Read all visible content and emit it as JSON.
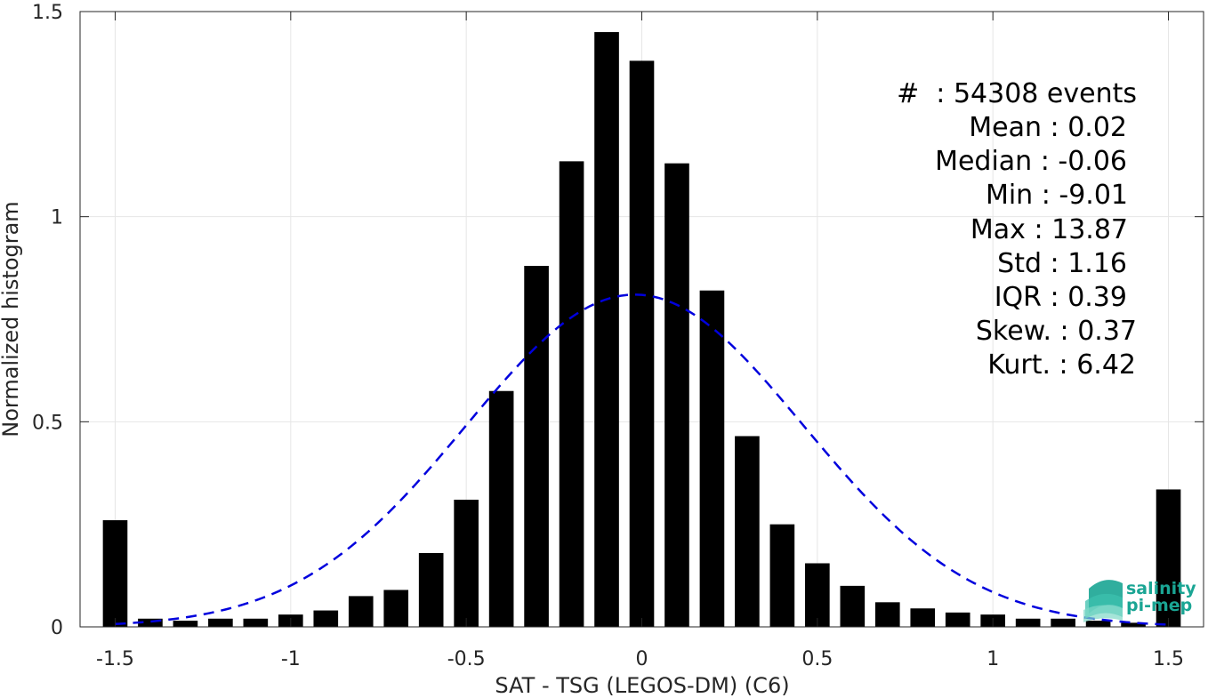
{
  "chart_data": {
    "type": "bar",
    "xlabel": "SAT - TSG (LEGOS-DM) (C6)",
    "ylabel": "Normalized histogram",
    "xlim": [
      -1.6,
      1.6
    ],
    "ylim": [
      0,
      1.5
    ],
    "xticks": [
      -1.5,
      -1,
      -0.5,
      0,
      0.5,
      1,
      1.5
    ],
    "xtick_labels": [
      "-1.5",
      "-1",
      "-0.5",
      "0",
      "0.5",
      "1",
      "1.5"
    ],
    "yticks": [
      0,
      0.5,
      1,
      1.5
    ],
    "ytick_labels": [
      "0",
      "0.5",
      "1",
      "1.5"
    ],
    "grid": true,
    "bar_width": 0.07,
    "bar_color": "#000000",
    "x": [
      -1.5,
      -1.4,
      -1.3,
      -1.2,
      -1.1,
      -1.0,
      -0.9,
      -0.8,
      -0.7,
      -0.6,
      -0.5,
      -0.4,
      -0.3,
      -0.2,
      -0.1,
      0.0,
      0.1,
      0.2,
      0.3,
      0.4,
      0.5,
      0.6,
      0.7,
      0.8,
      0.9,
      1.0,
      1.1,
      1.2,
      1.3,
      1.4,
      1.5
    ],
    "values": [
      0.26,
      0.02,
      0.015,
      0.02,
      0.02,
      0.03,
      0.04,
      0.075,
      0.09,
      0.18,
      0.31,
      0.575,
      0.88,
      1.135,
      1.45,
      1.38,
      1.13,
      0.82,
      0.465,
      0.25,
      0.155,
      0.1,
      0.06,
      0.045,
      0.035,
      0.03,
      0.02,
      0.02,
      0.015,
      0.01,
      0.335
    ],
    "fit_curve": {
      "type": "gaussian",
      "mean": -0.02,
      "peak": 0.81,
      "sigma": 0.48,
      "x_range": [
        -1.5,
        1.5
      ],
      "color": "#0000dd",
      "style": "dashed"
    },
    "stats": {
      "count": "#  : 54308 events",
      "mean": "Mean : 0.02",
      "median": "Median : -0.06",
      "min": "Min : -9.01",
      "max": "Max : 13.87",
      "std": "Std : 1.16",
      "iqr": "IQR : 0.39",
      "skew": "Skew. : 0.37",
      "kurt": "Kurt. : 6.42"
    }
  },
  "logo": {
    "line1": "salinity",
    "line2": "pi-mep",
    "color": "#1aa594"
  }
}
